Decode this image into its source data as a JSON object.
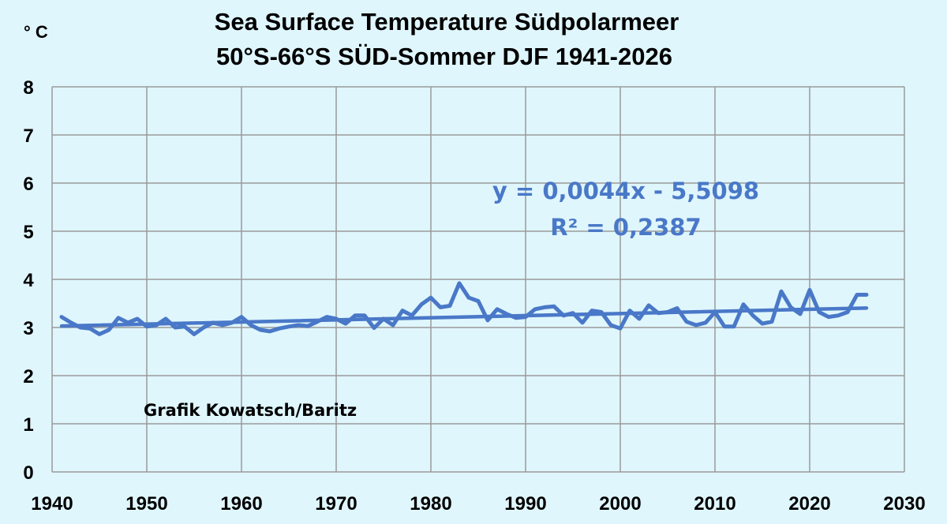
{
  "chart_data": {
    "type": "line",
    "title": [
      "Sea Surface Temperature Südpolarmeer",
      "50°S-66°S  SÜD-Sommer DJF 1941-2026"
    ],
    "ylabel": "° C",
    "xlim": [
      1940,
      2030
    ],
    "ylim": [
      0,
      8
    ],
    "xticks": [
      "1940",
      "1950",
      "1960",
      "1970",
      "1980",
      "1990",
      "2000",
      "2010",
      "2020",
      "2030"
    ],
    "yticks": [
      "0",
      "1",
      "2",
      "3",
      "4",
      "5",
      "6",
      "7",
      "8"
    ],
    "grid": true,
    "series": [
      {
        "color": "#4a78c8",
        "x": [
          1941,
          1942,
          1943,
          1944,
          1945,
          1946,
          1947,
          1948,
          1949,
          1950,
          1951,
          1952,
          1953,
          1954,
          1955,
          1956,
          1957,
          1958,
          1959,
          1960,
          1961,
          1962,
          1963,
          1964,
          1965,
          1966,
          1967,
          1968,
          1969,
          1970,
          1971,
          1972,
          1973,
          1974,
          1975,
          1976,
          1977,
          1978,
          1979,
          1980,
          1981,
          1982,
          1983,
          1984,
          1985,
          1986,
          1987,
          1988,
          1989,
          1990,
          1991,
          1992,
          1993,
          1994,
          1995,
          1996,
          1997,
          1998,
          1999,
          2000,
          2001,
          2002,
          2003,
          2004,
          2005,
          2006,
          2007,
          2008,
          2009,
          2010,
          2011,
          2012,
          2013,
          2014,
          2015,
          2016,
          2017,
          2018,
          2019,
          2020,
          2021,
          2022,
          2023,
          2024,
          2025,
          2026
        ],
        "y": [
          3.22,
          3.1,
          3.0,
          2.98,
          2.86,
          2.95,
          3.2,
          3.1,
          3.18,
          3.02,
          3.05,
          3.18,
          3.0,
          3.02,
          2.86,
          3.0,
          3.1,
          3.05,
          3.1,
          3.22,
          3.05,
          2.95,
          2.92,
          2.98,
          3.02,
          3.05,
          3.03,
          3.12,
          3.22,
          3.18,
          3.08,
          3.25,
          3.25,
          2.99,
          3.18,
          3.05,
          3.35,
          3.25,
          3.48,
          3.62,
          3.42,
          3.45,
          3.92,
          3.62,
          3.55,
          3.15,
          3.38,
          3.28,
          3.2,
          3.22,
          3.38,
          3.42,
          3.44,
          3.25,
          3.3,
          3.1,
          3.35,
          3.32,
          3.05,
          2.98,
          3.35,
          3.18,
          3.46,
          3.3,
          3.32,
          3.4,
          3.12,
          3.05,
          3.1,
          3.32,
          3.02,
          3.02,
          3.48,
          3.25,
          3.08,
          3.12,
          3.75,
          3.42,
          3.28,
          3.78,
          3.32,
          3.22,
          3.25,
          3.32,
          3.68,
          3.68
        ]
      }
    ],
    "trendline": {
      "slope": 0.0044,
      "intercept": -5.5098,
      "x_range": [
        1941,
        2026
      ],
      "equation_label": "y = 0,0044x - 5,5098",
      "r2_label": "R² = 0,2387"
    },
    "annotation": "Grafik Kowatsch/Baritz",
    "colors": {
      "background": "#dff6fd",
      "series": "#4a78c8",
      "label": "#4a78c8",
      "grid": "#9a9a9a"
    }
  }
}
